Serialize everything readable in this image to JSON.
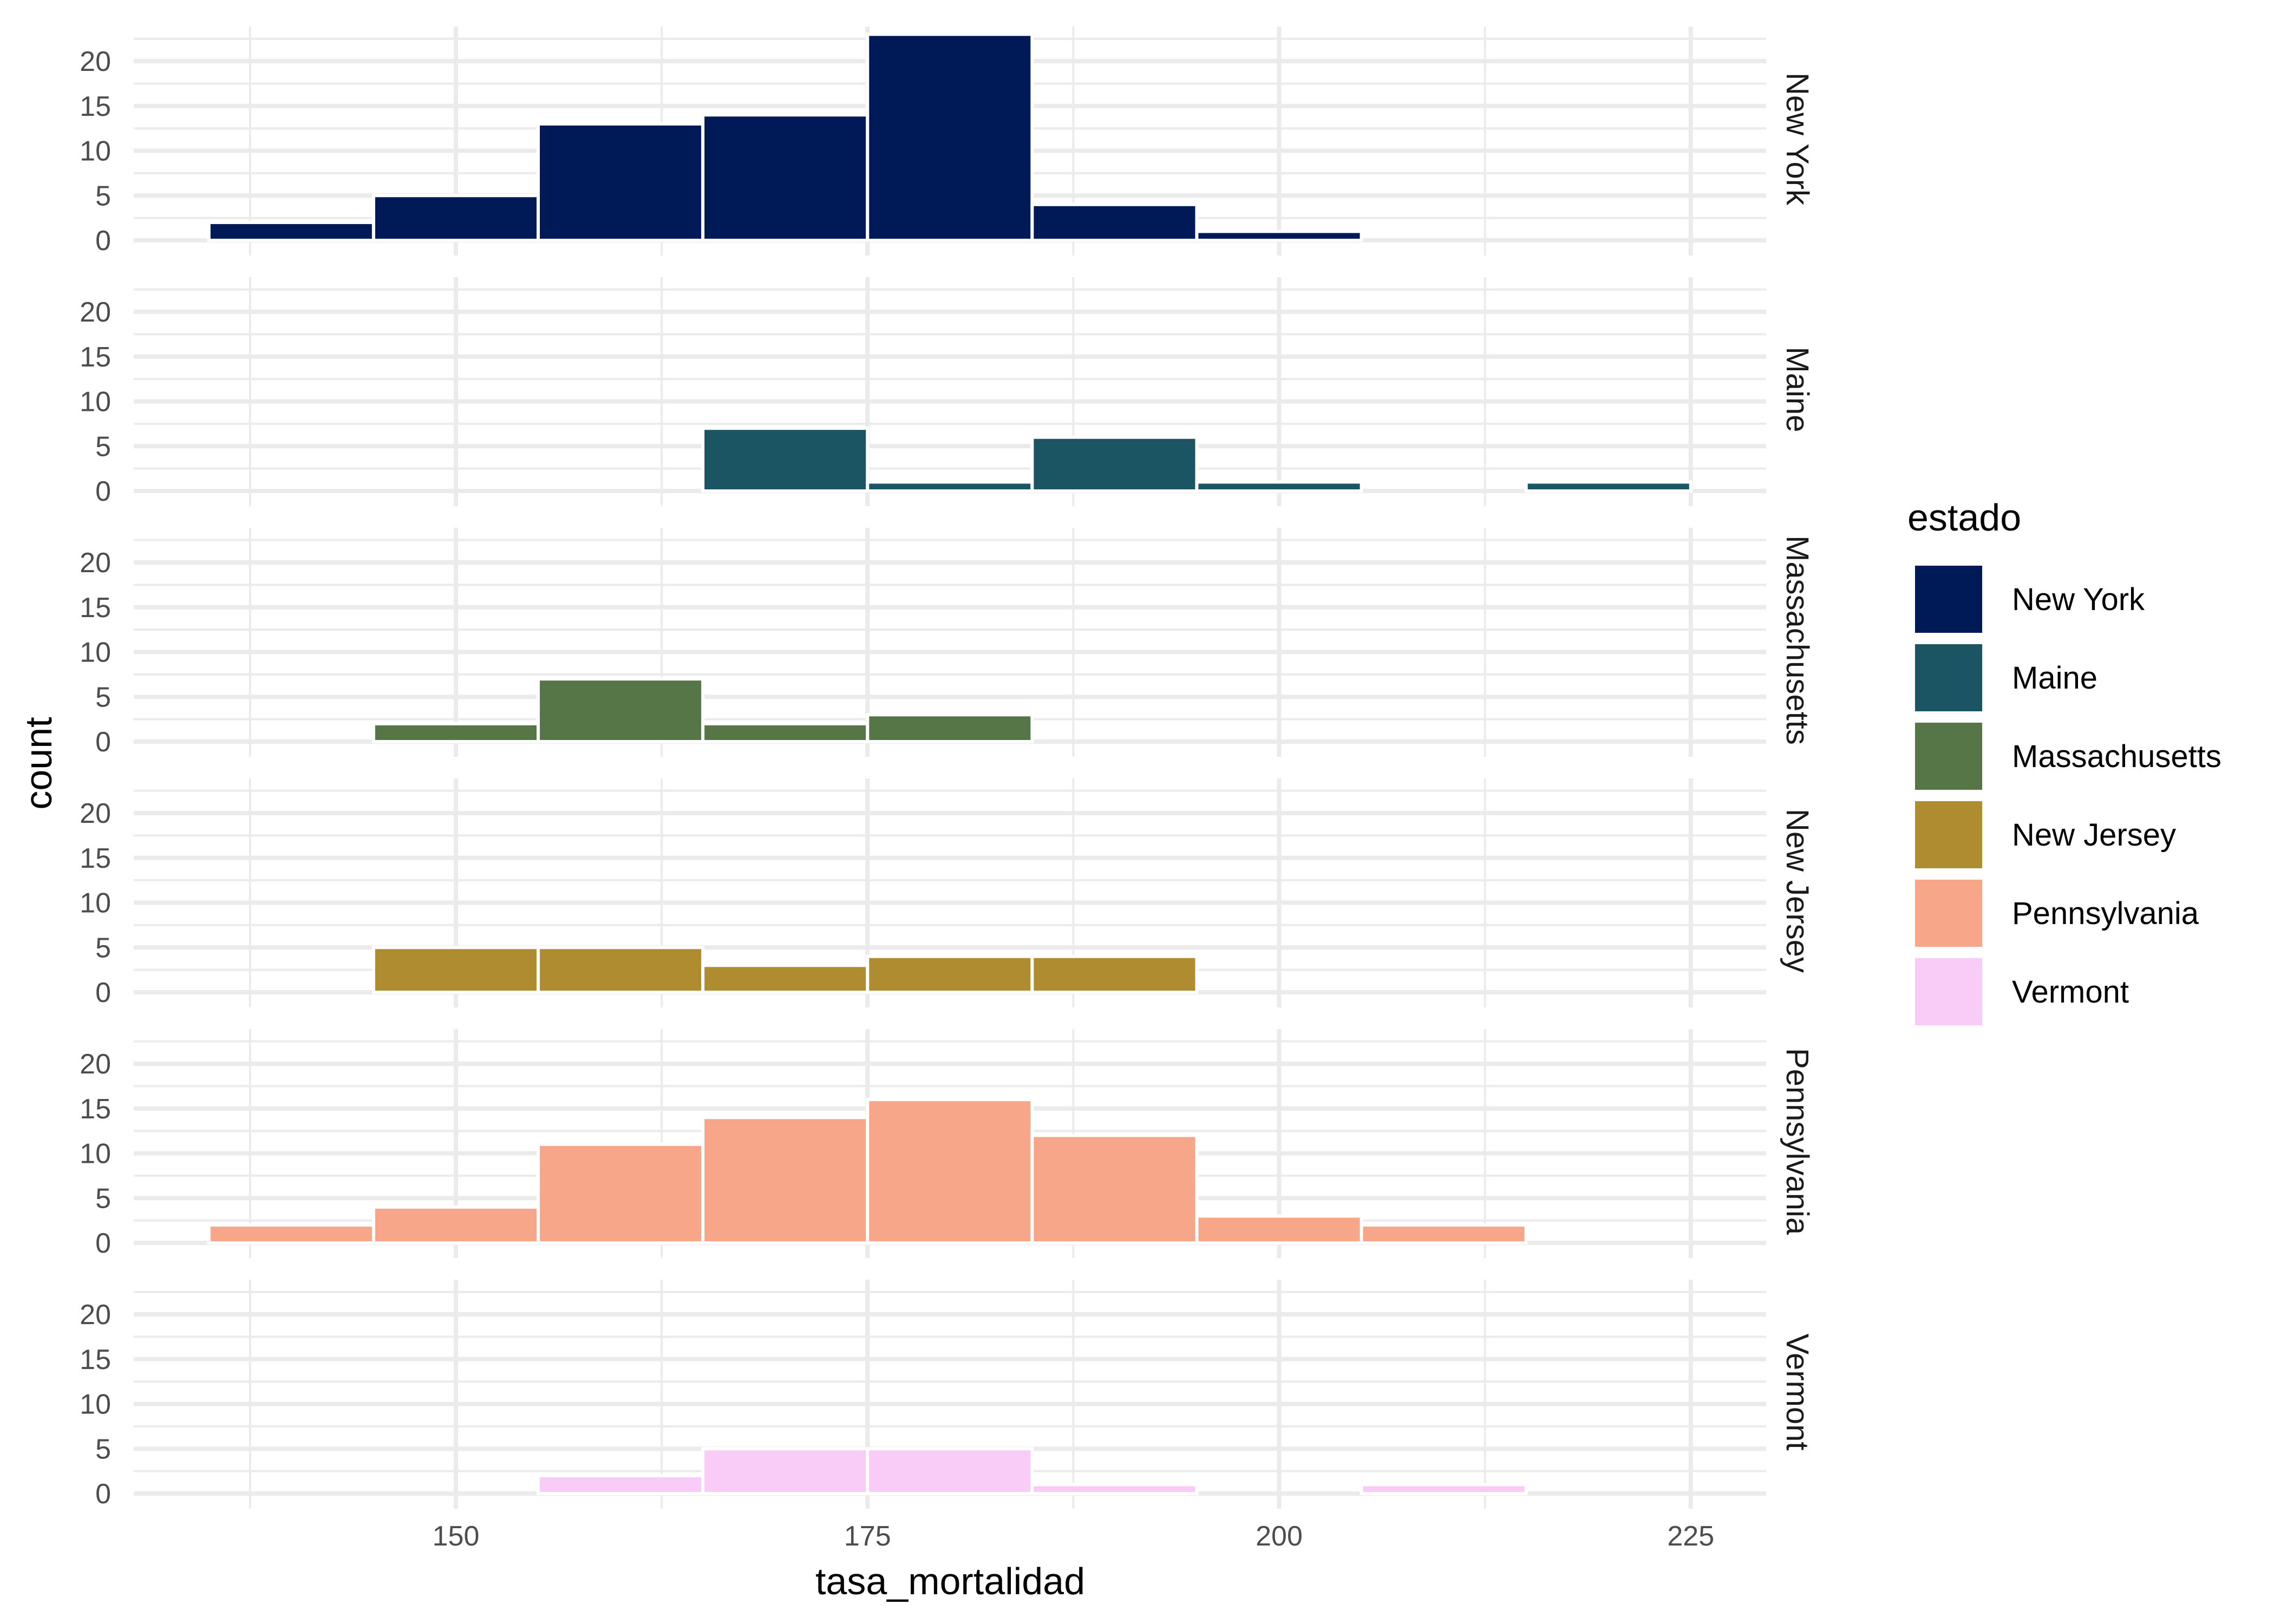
{
  "chart_data": {
    "type": "bar",
    "subtype": "faceted-histogram",
    "xlabel": "tasa_mortalidad",
    "ylabel": "count",
    "bin_width": 10,
    "bin_edges": [
      135,
      145,
      155,
      165,
      175,
      185,
      195,
      205,
      215,
      225
    ],
    "xlim": [
      130,
      230
    ],
    "x_ticks": [
      150,
      175,
      200,
      225
    ],
    "x_tick_labels": [
      "150",
      "175",
      "200",
      "225"
    ],
    "ylim": [
      0,
      23.5
    ],
    "y_ticks": [
      0,
      5,
      10,
      15,
      20
    ],
    "y_tick_labels": [
      "0",
      "5",
      "10",
      "15",
      "20"
    ],
    "grid": true,
    "legend": {
      "title": "estado",
      "position": "right",
      "entries": [
        {
          "label": "New York",
          "color": "#001A57"
        },
        {
          "label": "Maine",
          "color": "#1B5563"
        },
        {
          "label": "Massachusetts",
          "color": "#577647"
        },
        {
          "label": "New Jersey",
          "color": "#B08C30"
        },
        {
          "label": "Pennsylvania",
          "color": "#F8A68A"
        },
        {
          "label": "Vermont",
          "color": "#F8CCF6"
        }
      ]
    },
    "series": [
      {
        "name": "New York",
        "color": "#001A57",
        "values": [
          2,
          5,
          13,
          14,
          23,
          4,
          1,
          0,
          0
        ]
      },
      {
        "name": "Maine",
        "color": "#1B5563",
        "values": [
          0,
          0,
          0,
          7,
          1,
          6,
          1,
          0,
          1
        ]
      },
      {
        "name": "Massachusetts",
        "color": "#577647",
        "values": [
          0,
          2,
          7,
          2,
          3,
          0,
          0,
          0,
          0
        ]
      },
      {
        "name": "New Jersey",
        "color": "#B08C30",
        "values": [
          0,
          5,
          5,
          3,
          4,
          4,
          0,
          0,
          0
        ]
      },
      {
        "name": "Pennsylvania",
        "color": "#F8A68A",
        "values": [
          2,
          4,
          11,
          14,
          16,
          12,
          3,
          2,
          0
        ]
      },
      {
        "name": "Vermont",
        "color": "#F8CCF6",
        "values": [
          0,
          0,
          2,
          5,
          5,
          1,
          0,
          1,
          0
        ]
      }
    ]
  }
}
